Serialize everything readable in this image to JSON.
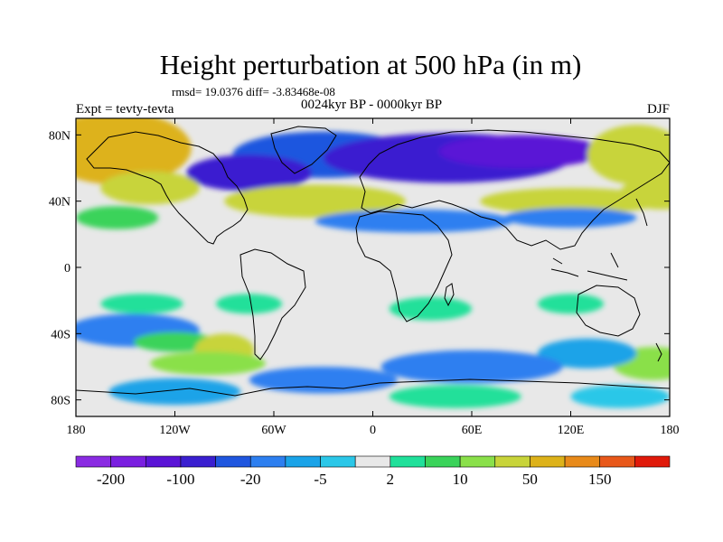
{
  "chart_data": {
    "type": "heatmap",
    "title": "Height perturbation at 500 hPa (in m)",
    "stats_text": "rmsd= 19.0376 diff= -3.83468e-08",
    "subtitle": "0024kyr BP - 0000kyr BP",
    "left_label": "Expt = tevty-tevta",
    "right_label": "DJF",
    "xlim": [
      -180,
      180
    ],
    "ylim": [
      -90,
      90
    ],
    "x_ticks": [
      {
        "value": -180,
        "label": "180"
      },
      {
        "value": -120,
        "label": "120W"
      },
      {
        "value": -60,
        "label": "60W"
      },
      {
        "value": 0,
        "label": "0"
      },
      {
        "value": 60,
        "label": "60E"
      },
      {
        "value": 120,
        "label": "120E"
      },
      {
        "value": 180,
        "label": "180"
      }
    ],
    "y_ticks": [
      {
        "value": 80,
        "label": "80N"
      },
      {
        "value": 40,
        "label": "40N"
      },
      {
        "value": 0,
        "label": "0"
      },
      {
        "value": -40,
        "label": "40S"
      },
      {
        "value": -80,
        "label": "80S"
      }
    ],
    "colorbar": {
      "levels": [
        -200,
        -150,
        -100,
        -50,
        -20,
        -10,
        -5,
        -2,
        2,
        5,
        10,
        20,
        50,
        100,
        150,
        200
      ],
      "colors": [
        "#8a2be2",
        "#7a1fe0",
        "#5a14d6",
        "#3a1fd0",
        "#1f56df",
        "#2d7ff0",
        "#1aa3e8",
        "#2bc7e8",
        "#e8e8e8",
        "#20e09a",
        "#3ad35a",
        "#8ae04a",
        "#c8d43a",
        "#ddb21a",
        "#e88a1a",
        "#e8581a",
        "#e01a0a"
      ],
      "tick_labels": [
        {
          "after_box": 1,
          "label": "-200"
        },
        {
          "after_box": 3,
          "label": "-100"
        },
        {
          "after_box": 5,
          "label": "-20"
        },
        {
          "after_box": 7,
          "label": "-5"
        },
        {
          "after_box": 9,
          "label": "2"
        },
        {
          "after_box": 11,
          "label": "10"
        },
        {
          "after_box": 13,
          "label": "50"
        },
        {
          "after_box": 15,
          "label": "150"
        }
      ]
    },
    "features": [
      {
        "lon": -30,
        "lat": 68,
        "rx": 55,
        "ry": 14,
        "value": -35
      },
      {
        "lon": 45,
        "lat": 66,
        "rx": 75,
        "ry": 15,
        "value": -75
      },
      {
        "lon": -75,
        "lat": 57,
        "rx": 38,
        "ry": 11,
        "value": -95
      },
      {
        "lon": 90,
        "lat": 70,
        "rx": 50,
        "ry": 10,
        "value": -110
      },
      {
        "lon": -155,
        "lat": 72,
        "rx": 45,
        "ry": 22,
        "value": 75
      },
      {
        "lon": 160,
        "lat": 68,
        "rx": 30,
        "ry": 18,
        "value": 40
      },
      {
        "lon": -135,
        "lat": 48,
        "rx": 30,
        "ry": 10,
        "value": 28
      },
      {
        "lon": -35,
        "lat": 40,
        "rx": 55,
        "ry": 10,
        "value": 45
      },
      {
        "lon": 120,
        "lat": 40,
        "rx": 55,
        "ry": 8,
        "value": 25
      },
      {
        "lon": 175,
        "lat": 45,
        "rx": 25,
        "ry": 10,
        "value": 45
      },
      {
        "lon": 25,
        "lat": 28,
        "rx": 60,
        "ry": 7,
        "value": -20
      },
      {
        "lon": 120,
        "lat": 30,
        "rx": 40,
        "ry": 6,
        "value": -20
      },
      {
        "lon": -155,
        "lat": 30,
        "rx": 25,
        "ry": 7,
        "value": 8
      },
      {
        "lon": -140,
        "lat": -22,
        "rx": 25,
        "ry": 6,
        "value": 4
      },
      {
        "lon": -75,
        "lat": -22,
        "rx": 20,
        "ry": 6,
        "value": 4
      },
      {
        "lon": 35,
        "lat": -25,
        "rx": 25,
        "ry": 7,
        "value": 4
      },
      {
        "lon": 120,
        "lat": -22,
        "rx": 20,
        "ry": 6,
        "value": 4
      },
      {
        "lon": -145,
        "lat": -38,
        "rx": 40,
        "ry": 10,
        "value": -15
      },
      {
        "lon": -120,
        "lat": -45,
        "rx": 25,
        "ry": 6,
        "value": 5
      },
      {
        "lon": -90,
        "lat": -50,
        "rx": 18,
        "ry": 10,
        "value": 28
      },
      {
        "lon": -100,
        "lat": -58,
        "rx": 35,
        "ry": 7,
        "value": 10
      },
      {
        "lon": 170,
        "lat": -58,
        "rx": 25,
        "ry": 10,
        "value": 18
      },
      {
        "lon": 130,
        "lat": -52,
        "rx": 30,
        "ry": 9,
        "value": -10
      },
      {
        "lon": 60,
        "lat": -60,
        "rx": 55,
        "ry": 10,
        "value": -18
      },
      {
        "lon": -30,
        "lat": -68,
        "rx": 45,
        "ry": 8,
        "value": -15
      },
      {
        "lon": -120,
        "lat": -75,
        "rx": 40,
        "ry": 8,
        "value": -6
      },
      {
        "lon": 50,
        "lat": -78,
        "rx": 40,
        "ry": 7,
        "value": 4
      },
      {
        "lon": 150,
        "lat": -78,
        "rx": 30,
        "ry": 7,
        "value": -4
      }
    ]
  }
}
